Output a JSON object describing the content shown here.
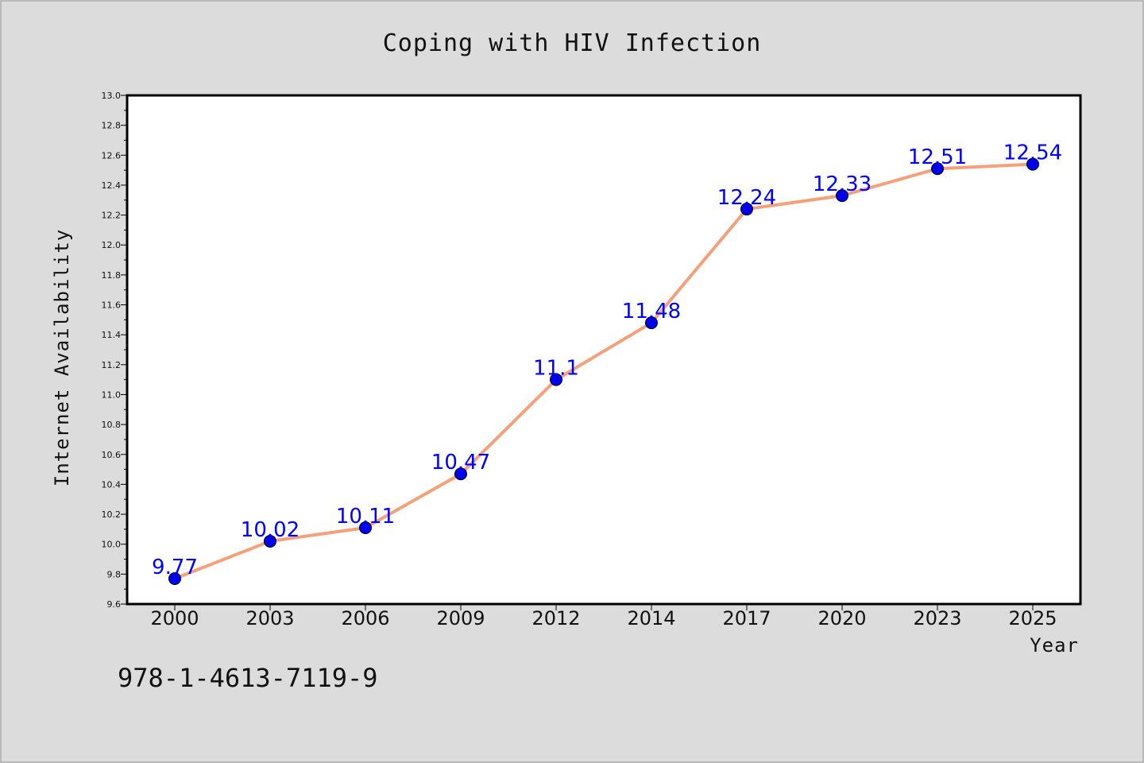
{
  "chart_data": {
    "type": "line",
    "title": "Coping with HIV Infection",
    "xlabel": "Year",
    "ylabel": "Internet Availability",
    "categories": [
      "2000",
      "2003",
      "2006",
      "2009",
      "2012",
      "2014",
      "2017",
      "2020",
      "2023",
      "2025"
    ],
    "series": [
      {
        "values": [
          9.77,
          10.02,
          10.11,
          10.47,
          11.1,
          11.48,
          12.24,
          12.33,
          12.51,
          12.54
        ],
        "labels": [
          "9.77",
          "10.02",
          "10.11",
          "10.47",
          "11.1",
          "11.48",
          "12.24",
          "12.33",
          "12.51",
          "12.54"
        ]
      }
    ],
    "ylim": [
      9.6,
      13.0
    ],
    "yticks": [
      "9.6",
      "9.8",
      "10.0",
      "10.2",
      "10.4",
      "10.6",
      "10.8",
      "11.0",
      "11.2",
      "11.4",
      "11.6",
      "11.8",
      "12.0",
      "12.2",
      "12.4",
      "12.6",
      "12.8",
      "13.0"
    ],
    "grid": false,
    "colors": {
      "background": "#dcdcdc",
      "plot_background": "#ffffff",
      "line": "#f4a07a",
      "marker": "#0000ee",
      "data_label": "#0000ff"
    }
  },
  "footer": {
    "code": "978-1-4613-7119-9"
  }
}
